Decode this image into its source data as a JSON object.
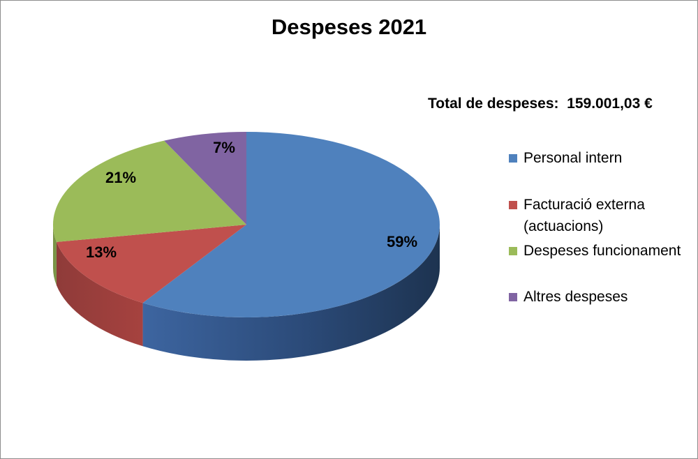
{
  "chart_data": {
    "type": "pie",
    "title": "Despeses 2021",
    "annotation": "Total de despeses:  159.001,03 €",
    "legend_position": "right",
    "slices": [
      {
        "label": "Personal intern",
        "value": 59,
        "display": "59%",
        "color": "#4f81bd"
      },
      {
        "label": "Facturació externa (actuacions)",
        "value": 13,
        "display": "13%",
        "color": "#c0504d"
      },
      {
        "label": "Despeses funcionament",
        "value": 21,
        "display": "21%",
        "color": "#9bbb59"
      },
      {
        "label": "Altres despeses",
        "value": 7,
        "display": "7%",
        "color": "#8064a2"
      }
    ]
  }
}
